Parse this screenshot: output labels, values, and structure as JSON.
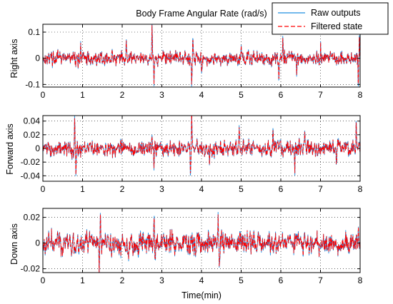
{
  "chart_data": [
    {
      "type": "line",
      "title": "Body Frame Angular Rate (rad/s)",
      "ylabel": "Right axis",
      "xlabel": "",
      "xlim": [
        0,
        8
      ],
      "ylim": [
        -0.11,
        0.13
      ],
      "xticks": [
        0,
        1,
        2,
        3,
        4,
        5,
        6,
        7,
        8
      ],
      "yticks": [
        -0.1,
        0,
        0.1
      ],
      "ytick_labels": [
        "-0.1",
        "0",
        "0.1"
      ],
      "grid": true,
      "noise_amplitude": 0.018,
      "spikes": [
        [
          0.95,
          0.06
        ],
        [
          2.1,
          0.07
        ],
        [
          2.75,
          0.13
        ],
        [
          2.8,
          -0.09
        ],
        [
          3.75,
          -0.1
        ],
        [
          3.78,
          0.09
        ],
        [
          4.0,
          -0.05
        ],
        [
          5.0,
          0.05
        ],
        [
          5.95,
          -0.09
        ],
        [
          6.05,
          0.08
        ],
        [
          6.4,
          -0.06
        ],
        [
          7.0,
          0.06
        ],
        [
          7.95,
          -0.09
        ],
        [
          7.98,
          0.09
        ]
      ],
      "series": [
        {
          "name": "Raw outputs",
          "color": "#1f8fe0",
          "style": "solid"
        },
        {
          "name": "Filtered state",
          "color": "#ff0000",
          "style": "dashed"
        }
      ]
    },
    {
      "type": "line",
      "title": "",
      "ylabel": "Forward axis",
      "xlabel": "",
      "xlim": [
        0,
        8
      ],
      "ylim": [
        -0.048,
        0.048
      ],
      "xticks": [
        0,
        1,
        2,
        3,
        4,
        5,
        6,
        7,
        8
      ],
      "yticks": [
        -0.04,
        -0.02,
        0,
        0.02,
        0.04
      ],
      "ytick_labels": [
        "-0.04",
        "-0.02",
        "0",
        "0.02",
        "0.04"
      ],
      "grid": true,
      "noise_amplitude": 0.008,
      "spikes": [
        [
          0.8,
          0.048
        ],
        [
          0.83,
          -0.04
        ],
        [
          2.75,
          0.025
        ],
        [
          2.8,
          -0.035
        ],
        [
          3.72,
          -0.045
        ],
        [
          3.75,
          0.048
        ],
        [
          4.2,
          -0.03
        ],
        [
          4.95,
          0.028
        ],
        [
          5.8,
          0.03
        ],
        [
          6.35,
          -0.035
        ],
        [
          6.6,
          0.03
        ],
        [
          7.4,
          -0.03
        ],
        [
          7.9,
          0.035
        ]
      ],
      "series": [
        {
          "name": "Raw outputs",
          "color": "#1f8fe0",
          "style": "solid"
        },
        {
          "name": "Filtered state",
          "color": "#ff0000",
          "style": "dashed"
        }
      ]
    },
    {
      "type": "line",
      "title": "",
      "ylabel": "Down axis",
      "xlabel": "Time(min)",
      "xlim": [
        0,
        8
      ],
      "ylim": [
        -0.023,
        0.027
      ],
      "xticks": [
        0,
        1,
        2,
        3,
        4,
        5,
        6,
        7,
        8
      ],
      "yticks": [
        -0.02,
        0,
        0.02
      ],
      "ytick_labels": [
        "-0.02",
        "0",
        "0.02"
      ],
      "grid": true,
      "noise_amplitude": 0.006,
      "spikes": [
        [
          1.42,
          -0.022
        ],
        [
          1.45,
          0.027
        ],
        [
          2.8,
          0.027
        ],
        [
          2.83,
          -0.015
        ],
        [
          4.42,
          0.025
        ],
        [
          4.45,
          -0.022
        ],
        [
          7.95,
          0.015
        ]
      ],
      "series": [
        {
          "name": "Raw outputs",
          "color": "#1f8fe0",
          "style": "solid"
        },
        {
          "name": "Filtered state",
          "color": "#ff0000",
          "style": "dashed"
        }
      ]
    }
  ],
  "legend": {
    "placement": "top-right",
    "entries": [
      {
        "label": "Raw outputs",
        "color": "#1f8fe0",
        "style": "solid"
      },
      {
        "label": "Filtered state",
        "color": "#ff0000",
        "style": "dashed"
      }
    ]
  }
}
